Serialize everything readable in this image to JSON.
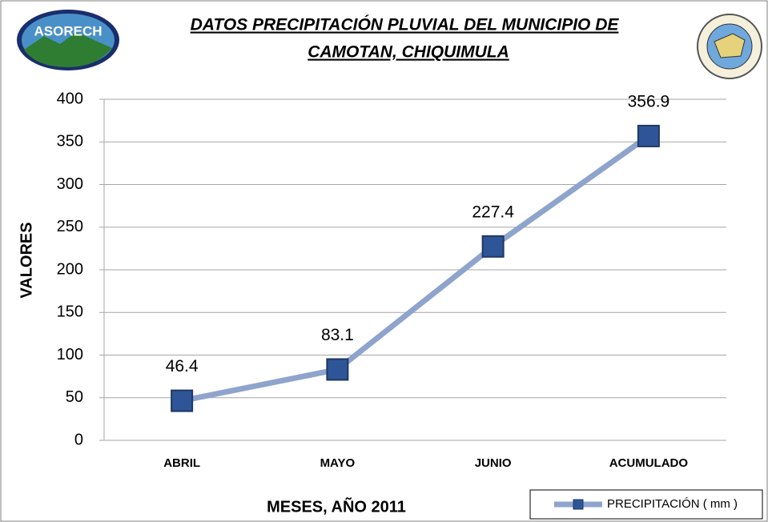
{
  "logo_left_text": "ASORECH",
  "chart_data": {
    "type": "line",
    "title": [
      "DATOS PRECIPITACIÓN PLUVIAL DEL MUNICIPIO DE",
      "CAMOTAN, CHIQUIMULA"
    ],
    "y_label": "VALORES",
    "x_label": "MESES, AÑO 2011",
    "categories": [
      "ABRIL",
      "MAYO",
      "JUNIO",
      "ACUMULADO"
    ],
    "series": [
      {
        "name": "PRECIPITACIÓN ( mm )",
        "color": "#8ea4cc",
        "marker_color": "#2e5597",
        "values": [
          46.4,
          83.1,
          227.4,
          356.9
        ]
      }
    ],
    "ylim": [
      0,
      400
    ],
    "yticks": [
      0,
      50,
      100,
      150,
      200,
      250,
      300,
      350,
      400
    ],
    "grid": true,
    "legend": "bottom-right"
  }
}
